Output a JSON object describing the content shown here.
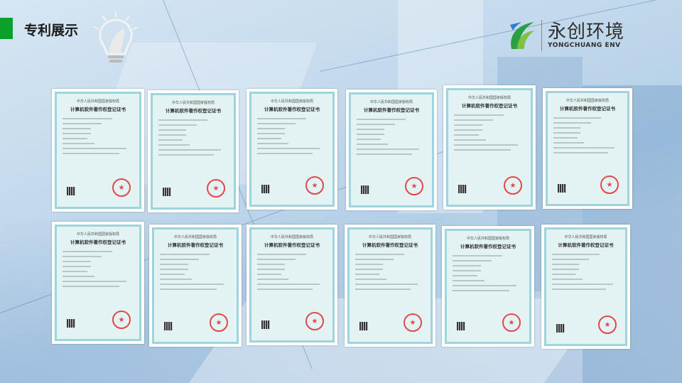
{
  "header": {
    "title": "专利展示",
    "accent_color": "#0aa02b",
    "icon": "lightbulb-hand-icon"
  },
  "logo": {
    "name_cn": "永创环境",
    "name_en": "YONGCHUANG ENV"
  },
  "certificate_template": {
    "issuer": "中华人民共和国国家版权局",
    "title": "计算机软件著作权登记证书"
  },
  "certificates": [
    {
      "issuer": "中华人民共和国国家版权局",
      "title": "计算机软件著作权登记证书"
    },
    {
      "issuer": "中华人民共和国国家版权局",
      "title": "计算机软件著作权登记证书"
    },
    {
      "issuer": "中华人民共和国国家版权局",
      "title": "计算机软件著作权登记证书"
    },
    {
      "issuer": "中华人民共和国国家版权局",
      "title": "计算机软件著作权登记证书"
    },
    {
      "issuer": "中华人民共和国国家版权局",
      "title": "计算机软件著作权登记证书"
    },
    {
      "issuer": "中华人民共和国国家版权局",
      "title": "计算机软件著作权登记证书"
    },
    {
      "issuer": "中华人民共和国国家版权局",
      "title": "计算机软件著作权登记证书"
    },
    {
      "issuer": "中华人民共和国国家版权局",
      "title": "计算机软件著作权登记证书"
    },
    {
      "issuer": "中华人民共和国国家版权局",
      "title": "计算机软件著作权登记证书"
    },
    {
      "issuer": "中华人民共和国国家版权局",
      "title": "计算机软件著作权登记证书"
    },
    {
      "issuer": "中华人民共和国国家版权局",
      "title": "计算机软件著作权登记证书"
    },
    {
      "issuer": "中华人民共和国国家版权局",
      "title": "计算机软件著作权登记证书"
    }
  ]
}
